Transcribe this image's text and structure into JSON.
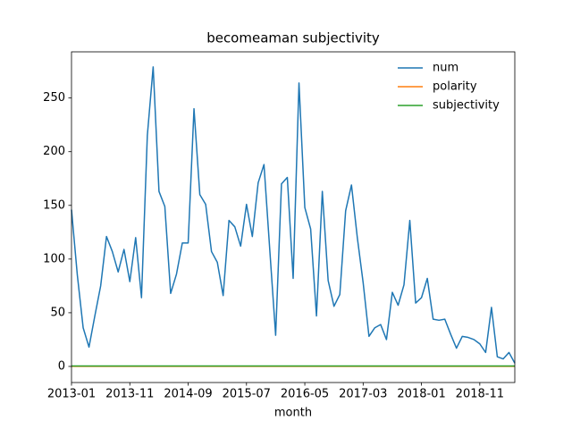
{
  "chart_data": {
    "type": "line",
    "title": "becomeaman subjectivity",
    "x_label": "month",
    "x": [
      "2013-01",
      "2013-02",
      "2013-03",
      "2013-04",
      "2013-05",
      "2013-06",
      "2013-07",
      "2013-08",
      "2013-09",
      "2013-10",
      "2013-11",
      "2013-12",
      "2014-01",
      "2014-02",
      "2014-03",
      "2014-04",
      "2014-05",
      "2014-06",
      "2014-07",
      "2014-08",
      "2014-09",
      "2014-10",
      "2014-11",
      "2014-12",
      "2015-01",
      "2015-02",
      "2015-03",
      "2015-04",
      "2015-05",
      "2015-06",
      "2015-07",
      "2015-08",
      "2015-09",
      "2015-10",
      "2015-11",
      "2015-12",
      "2016-01",
      "2016-02",
      "2016-03",
      "2016-04",
      "2016-05",
      "2016-06",
      "2016-07",
      "2016-08",
      "2016-09",
      "2016-10",
      "2016-11",
      "2016-12",
      "2017-01",
      "2017-02",
      "2017-03",
      "2017-04",
      "2017-05",
      "2017-06",
      "2017-07",
      "2017-08",
      "2017-09",
      "2017-10",
      "2017-11",
      "2017-12",
      "2018-01",
      "2018-02",
      "2018-03",
      "2018-04",
      "2018-05",
      "2018-06",
      "2018-07",
      "2018-08",
      "2018-09",
      "2018-10",
      "2018-11",
      "2018-12",
      "2019-01",
      "2019-02",
      "2019-03",
      "2019-04",
      "2019-05"
    ],
    "series": [
      {
        "name": "num",
        "color": "#1f77b4",
        "values": [
          146,
          85,
          36,
          18,
          47,
          75,
          121,
          107,
          88,
          109,
          79,
          120,
          64,
          215,
          279,
          163,
          149,
          68,
          86,
          115,
          115,
          240,
          160,
          151,
          107,
          97,
          66,
          136,
          130,
          112,
          151,
          121,
          171,
          188,
          108,
          29,
          170,
          176,
          82,
          264,
          148,
          128,
          47,
          163,
          80,
          56,
          67,
          145,
          169,
          120,
          78,
          28,
          36,
          39,
          25,
          69,
          57,
          76,
          136,
          59,
          64,
          82,
          44,
          43,
          44,
          30,
          17,
          28,
          27,
          25,
          21,
          13,
          55,
          9,
          7,
          13,
          3
        ]
      },
      {
        "name": "polarity",
        "color": "#ff7f0e",
        "values": [
          0.1,
          0.1,
          0.1,
          0.1,
          0.1,
          0.1,
          0.1,
          0.1,
          0.1,
          0.1,
          0.1,
          0.1,
          0.1,
          0.1,
          0.1,
          0.1,
          0.1,
          0.1,
          0.1,
          0.1,
          0.1,
          0.1,
          0.1,
          0.1,
          0.1,
          0.1,
          0.1,
          0.1,
          0.1,
          0.1,
          0.1,
          0.1,
          0.1,
          0.1,
          0.1,
          0.1,
          0.1,
          0.1,
          0.1,
          0.1,
          0.1,
          0.1,
          0.1,
          0.1,
          0.1,
          0.1,
          0.1,
          0.1,
          0.1,
          0.1,
          0.1,
          0.1,
          0.1,
          0.1,
          0.1,
          0.1,
          0.1,
          0.1,
          0.1,
          0.1,
          0.1,
          0.1,
          0.1,
          0.1,
          0.1,
          0.1,
          0.1,
          0.1,
          0.1,
          0.1,
          0.1,
          0.1,
          0.1,
          0.1,
          0.1,
          0.1,
          0.1
        ]
      },
      {
        "name": "subjectivity",
        "color": "#2ca02c",
        "values": [
          0.45,
          0.45,
          0.45,
          0.45,
          0.45,
          0.45,
          0.45,
          0.45,
          0.45,
          0.45,
          0.45,
          0.45,
          0.45,
          0.45,
          0.45,
          0.45,
          0.45,
          0.45,
          0.45,
          0.45,
          0.45,
          0.45,
          0.45,
          0.45,
          0.45,
          0.45,
          0.45,
          0.45,
          0.45,
          0.45,
          0.45,
          0.45,
          0.45,
          0.45,
          0.45,
          0.45,
          0.45,
          0.45,
          0.45,
          0.45,
          0.45,
          0.45,
          0.45,
          0.45,
          0.45,
          0.45,
          0.45,
          0.45,
          0.45,
          0.45,
          0.45,
          0.45,
          0.45,
          0.45,
          0.45,
          0.45,
          0.45,
          0.45,
          0.45,
          0.45,
          0.45,
          0.45,
          0.45,
          0.45,
          0.45,
          0.45,
          0.45,
          0.45,
          0.45,
          0.45,
          0.45,
          0.45,
          0.45,
          0.45,
          0.45,
          0.45,
          0.45
        ]
      }
    ],
    "xlim": [
      "2013-01",
      "2019-05"
    ],
    "xticks": [
      "2013-01",
      "2013-11",
      "2014-09",
      "2015-07",
      "2016-05",
      "2017-03",
      "2018-01",
      "2018-11"
    ],
    "ylim": [
      -15,
      293
    ],
    "yticks": [
      0,
      50,
      100,
      150,
      200,
      250
    ],
    "legend": "upper right"
  }
}
